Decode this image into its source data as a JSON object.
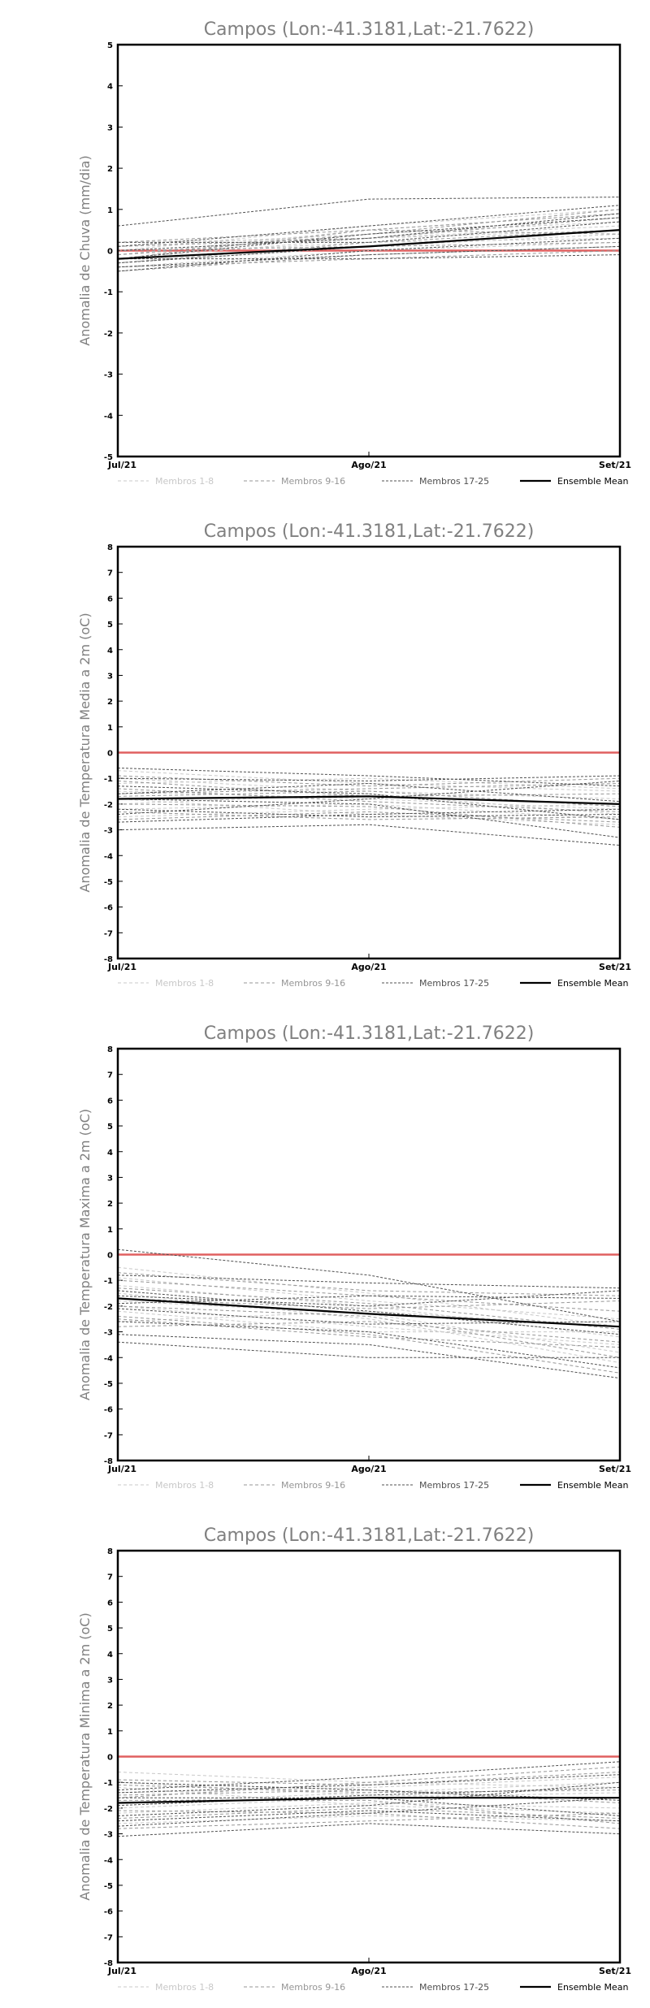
{
  "legend": {
    "items": [
      "Membros 1-8",
      "Membros 9-16",
      "Membros 17-25",
      "Ensemble Mean"
    ],
    "colors": [
      "#c8c8c8",
      "#969696",
      "#505050",
      "#000000"
    ]
  },
  "colors": {
    "zero_line": "#e06060",
    "axis": "#000000",
    "title": "#808080"
  },
  "chart_data": [
    {
      "type": "line",
      "title": "Campos (Lon:-41.3181,Lat:-21.7622)",
      "ylabel": "Anomalia de Chuva (mm/dia)",
      "x": [
        "Jul/21",
        "Ago/21",
        "Set/21"
      ],
      "ylim": [
        -5,
        5
      ],
      "yticks": [
        -5,
        -4,
        -3,
        -2,
        -1,
        0,
        1,
        2,
        3,
        4,
        5
      ],
      "grid": false,
      "legend": "bottom",
      "zero_line": 0,
      "series": [
        {
          "group": 1,
          "values": [
            -0.2,
            0.3,
            0.6
          ]
        },
        {
          "group": 1,
          "values": [
            -0.1,
            0.5,
            0.9
          ]
        },
        {
          "group": 1,
          "values": [
            0.1,
            0.4,
            0.7
          ]
        },
        {
          "group": 1,
          "values": [
            -0.3,
            0.1,
            0.4
          ]
        },
        {
          "group": 1,
          "values": [
            0.0,
            0.6,
            1.0
          ]
        },
        {
          "group": 1,
          "values": [
            -0.4,
            0.0,
            0.2
          ]
        },
        {
          "group": 1,
          "values": [
            0.2,
            0.3,
            0.5
          ]
        },
        {
          "group": 1,
          "values": [
            -0.1,
            0.2,
            0.3
          ]
        },
        {
          "group": 2,
          "values": [
            -0.5,
            -0.1,
            0.1
          ]
        },
        {
          "group": 2,
          "values": [
            0.1,
            0.3,
            0.8
          ]
        },
        {
          "group": 2,
          "values": [
            -0.2,
            0.5,
            0.9
          ]
        },
        {
          "group": 2,
          "values": [
            0.0,
            0.1,
            0.2
          ]
        },
        {
          "group": 2,
          "values": [
            -0.3,
            0.2,
            0.5
          ]
        },
        {
          "group": 2,
          "values": [
            -0.1,
            0.4,
            1.0
          ]
        },
        {
          "group": 2,
          "values": [
            -0.4,
            -0.2,
            0.0
          ]
        },
        {
          "group": 2,
          "values": [
            0.2,
            0.5,
            0.4
          ]
        },
        {
          "group": 3,
          "values": [
            0.6,
            1.25,
            1.3
          ]
        },
        {
          "group": 3,
          "values": [
            -0.5,
            0.0,
            0.3
          ]
        },
        {
          "group": 3,
          "values": [
            -0.2,
            0.4,
            0.8
          ]
        },
        {
          "group": 3,
          "values": [
            0.0,
            0.3,
            0.9
          ]
        },
        {
          "group": 3,
          "values": [
            -0.3,
            0.1,
            0.5
          ]
        },
        {
          "group": 3,
          "values": [
            -0.4,
            -0.1,
            0.1
          ]
        },
        {
          "group": 3,
          "values": [
            0.1,
            0.6,
            1.1
          ]
        },
        {
          "group": 3,
          "values": [
            -0.2,
            -0.2,
            -0.1
          ]
        },
        {
          "group": 3,
          "values": [
            0.2,
            0.2,
            0.7
          ]
        },
        {
          "group": 4,
          "values": [
            -0.2,
            0.1,
            0.5
          ]
        }
      ]
    },
    {
      "type": "line",
      "title": "Campos (Lon:-41.3181,Lat:-21.7622)",
      "ylabel": "Anomalia de Temperatura Media a 2m (oC)",
      "x": [
        "Jul/21",
        "Ago/21",
        "Set/21"
      ],
      "ylim": [
        -8,
        8
      ],
      "yticks": [
        -8,
        -7,
        -6,
        -5,
        -4,
        -3,
        -2,
        -1,
        0,
        1,
        2,
        3,
        4,
        5,
        6,
        7,
        8
      ],
      "grid": false,
      "legend": "bottom",
      "zero_line": 0,
      "series": [
        {
          "group": 1,
          "values": [
            -0.7,
            -1.2,
            -1.5
          ]
        },
        {
          "group": 1,
          "values": [
            -1.5,
            -1.8,
            -2.2
          ]
        },
        {
          "group": 1,
          "values": [
            -2.2,
            -2.0,
            -2.6
          ]
        },
        {
          "group": 1,
          "values": [
            -1.0,
            -1.5,
            -1.8
          ]
        },
        {
          "group": 1,
          "values": [
            -2.5,
            -2.2,
            -2.0
          ]
        },
        {
          "group": 1,
          "values": [
            -1.8,
            -2.4,
            -2.8
          ]
        },
        {
          "group": 1,
          "values": [
            -1.2,
            -1.0,
            -1.4
          ]
        },
        {
          "group": 1,
          "values": [
            -2.0,
            -1.6,
            -2.4
          ]
        },
        {
          "group": 2,
          "values": [
            -1.4,
            -1.9,
            -2.3
          ]
        },
        {
          "group": 2,
          "values": [
            -2.3,
            -2.6,
            -2.5
          ]
        },
        {
          "group": 2,
          "values": [
            -0.9,
            -1.3,
            -1.0
          ]
        },
        {
          "group": 2,
          "values": [
            -1.7,
            -1.5,
            -2.1
          ]
        },
        {
          "group": 2,
          "values": [
            -2.6,
            -2.3,
            -2.7
          ]
        },
        {
          "group": 2,
          "values": [
            -1.1,
            -1.7,
            -1.6
          ]
        },
        {
          "group": 2,
          "values": [
            -2.0,
            -2.1,
            -2.9
          ]
        },
        {
          "group": 2,
          "values": [
            -1.6,
            -1.4,
            -1.2
          ]
        },
        {
          "group": 3,
          "values": [
            -3.0,
            -2.8,
            -3.6
          ]
        },
        {
          "group": 3,
          "values": [
            -0.6,
            -0.9,
            -1.3
          ]
        },
        {
          "group": 3,
          "values": [
            -1.8,
            -2.0,
            -3.3
          ]
        },
        {
          "group": 3,
          "values": [
            -2.4,
            -1.8,
            -1.1
          ]
        },
        {
          "group": 3,
          "values": [
            -1.3,
            -1.6,
            -2.6
          ]
        },
        {
          "group": 3,
          "values": [
            -2.2,
            -2.5,
            -2.4
          ]
        },
        {
          "group": 3,
          "values": [
            -1.6,
            -1.2,
            -1.9
          ]
        },
        {
          "group": 3,
          "values": [
            -2.7,
            -2.4,
            -2.2
          ]
        },
        {
          "group": 3,
          "values": [
            -1.0,
            -1.1,
            -0.9
          ]
        },
        {
          "group": 4,
          "values": [
            -1.8,
            -1.7,
            -2.0
          ]
        }
      ]
    },
    {
      "type": "line",
      "title": "Campos (Lon:-41.3181,Lat:-21.7622)",
      "ylabel": "Anomalia de Temperatura Maxima a 2m (oC)",
      "x": [
        "Jul/21",
        "Ago/21",
        "Set/21"
      ],
      "ylim": [
        -8,
        8
      ],
      "yticks": [
        -8,
        -7,
        -6,
        -5,
        -4,
        -3,
        -2,
        -1,
        0,
        1,
        2,
        3,
        4,
        5,
        6,
        7,
        8
      ],
      "grid": false,
      "legend": "bottom",
      "zero_line": 0,
      "series": [
        {
          "group": 1,
          "values": [
            -0.5,
            -1.5,
            -2.8
          ]
        },
        {
          "group": 1,
          "values": [
            -1.2,
            -2.0,
            -3.2
          ]
        },
        {
          "group": 1,
          "values": [
            -2.0,
            -2.8,
            -3.5
          ]
        },
        {
          "group": 1,
          "values": [
            -2.6,
            -2.2,
            -2.8
          ]
        },
        {
          "group": 1,
          "values": [
            -1.5,
            -2.5,
            -4.2
          ]
        },
        {
          "group": 1,
          "values": [
            -2.2,
            -3.0,
            -3.0
          ]
        },
        {
          "group": 1,
          "values": [
            -0.9,
            -1.8,
            -2.5
          ]
        },
        {
          "group": 1,
          "values": [
            -1.8,
            -2.3,
            -3.8
          ]
        },
        {
          "group": 2,
          "values": [
            -1.0,
            -1.6,
            -2.2
          ]
        },
        {
          "group": 2,
          "values": [
            -2.4,
            -3.1,
            -4.6
          ]
        },
        {
          "group": 2,
          "values": [
            -1.7,
            -2.1,
            -1.8
          ]
        },
        {
          "group": 2,
          "values": [
            -2.8,
            -2.6,
            -3.4
          ]
        },
        {
          "group": 2,
          "values": [
            -1.3,
            -1.9,
            -2.9
          ]
        },
        {
          "group": 2,
          "values": [
            -2.0,
            -2.4,
            -4.0
          ]
        },
        {
          "group": 2,
          "values": [
            -0.7,
            -1.4,
            -1.6
          ]
        },
        {
          "group": 2,
          "values": [
            -2.5,
            -3.2,
            -3.6
          ]
        },
        {
          "group": 3,
          "values": [
            0.2,
            -0.8,
            -2.6
          ]
        },
        {
          "group": 3,
          "values": [
            -3.4,
            -4.0,
            -4.0
          ]
        },
        {
          "group": 3,
          "values": [
            -1.6,
            -2.0,
            -1.4
          ]
        },
        {
          "group": 3,
          "values": [
            -3.1,
            -3.5,
            -4.8
          ]
        },
        {
          "group": 3,
          "values": [
            -0.8,
            -1.1,
            -1.3
          ]
        },
        {
          "group": 3,
          "values": [
            -2.1,
            -2.7,
            -2.6
          ]
        },
        {
          "group": 3,
          "values": [
            -1.9,
            -1.6,
            -1.7
          ]
        },
        {
          "group": 3,
          "values": [
            -2.6,
            -3.0,
            -4.4
          ]
        },
        {
          "group": 3,
          "values": [
            -1.4,
            -2.2,
            -3.1
          ]
        },
        {
          "group": 4,
          "values": [
            -1.7,
            -2.3,
            -2.8
          ]
        }
      ]
    },
    {
      "type": "line",
      "title": "Campos (Lon:-41.3181,Lat:-21.7622)",
      "ylabel": "Anomalia de Temperatura Minima a 2m (oC)",
      "x": [
        "Jul/21",
        "Ago/21",
        "Set/21"
      ],
      "ylim": [
        -8,
        8
      ],
      "yticks": [
        -8,
        -7,
        -6,
        -5,
        -4,
        -3,
        -2,
        -1,
        0,
        1,
        2,
        3,
        4,
        5,
        6,
        7,
        8
      ],
      "grid": false,
      "legend": "bottom",
      "zero_line": 0,
      "series": [
        {
          "group": 1,
          "values": [
            -0.6,
            -1.0,
            -1.2
          ]
        },
        {
          "group": 1,
          "values": [
            -1.4,
            -1.2,
            -0.8
          ]
        },
        {
          "group": 1,
          "values": [
            -2.2,
            -1.8,
            -2.0
          ]
        },
        {
          "group": 1,
          "values": [
            -1.0,
            -1.5,
            -1.6
          ]
        },
        {
          "group": 1,
          "values": [
            -2.6,
            -2.3,
            -2.5
          ]
        },
        {
          "group": 1,
          "values": [
            -1.8,
            -1.4,
            -1.0
          ]
        },
        {
          "group": 1,
          "values": [
            -1.2,
            -1.9,
            -2.2
          ]
        },
        {
          "group": 1,
          "values": [
            -2.0,
            -1.6,
            -1.4
          ]
        },
        {
          "group": 2,
          "values": [
            -1.5,
            -1.3,
            -1.8
          ]
        },
        {
          "group": 2,
          "values": [
            -2.4,
            -2.0,
            -2.4
          ]
        },
        {
          "group": 2,
          "values": [
            -0.9,
            -1.1,
            -0.6
          ]
        },
        {
          "group": 2,
          "values": [
            -1.7,
            -1.7,
            -2.6
          ]
        },
        {
          "group": 2,
          "values": [
            -2.8,
            -2.5,
            -2.2
          ]
        },
        {
          "group": 2,
          "values": [
            -1.1,
            -1.4,
            -1.3
          ]
        },
        {
          "group": 2,
          "values": [
            -2.1,
            -2.2,
            -2.8
          ]
        },
        {
          "group": 2,
          "values": [
            -1.6,
            -1.0,
            -0.4
          ]
        },
        {
          "group": 3,
          "values": [
            -3.1,
            -2.6,
            -3.0
          ]
        },
        {
          "group": 3,
          "values": [
            -1.3,
            -0.8,
            -0.2
          ]
        },
        {
          "group": 3,
          "values": [
            -1.9,
            -1.5,
            -1.2
          ]
        },
        {
          "group": 3,
          "values": [
            -2.5,
            -2.1,
            -2.5
          ]
        },
        {
          "group": 3,
          "values": [
            -1.0,
            -1.3,
            -1.7
          ]
        },
        {
          "group": 3,
          "values": [
            -2.3,
            -1.9,
            -1.0
          ]
        },
        {
          "group": 3,
          "values": [
            -1.6,
            -1.6,
            -2.3
          ]
        },
        {
          "group": 3,
          "values": [
            -2.7,
            -2.2,
            -1.6
          ]
        },
        {
          "group": 3,
          "values": [
            -1.4,
            -1.1,
            -0.7
          ]
        },
        {
          "group": 4,
          "values": [
            -1.8,
            -1.6,
            -1.6
          ]
        }
      ]
    }
  ]
}
